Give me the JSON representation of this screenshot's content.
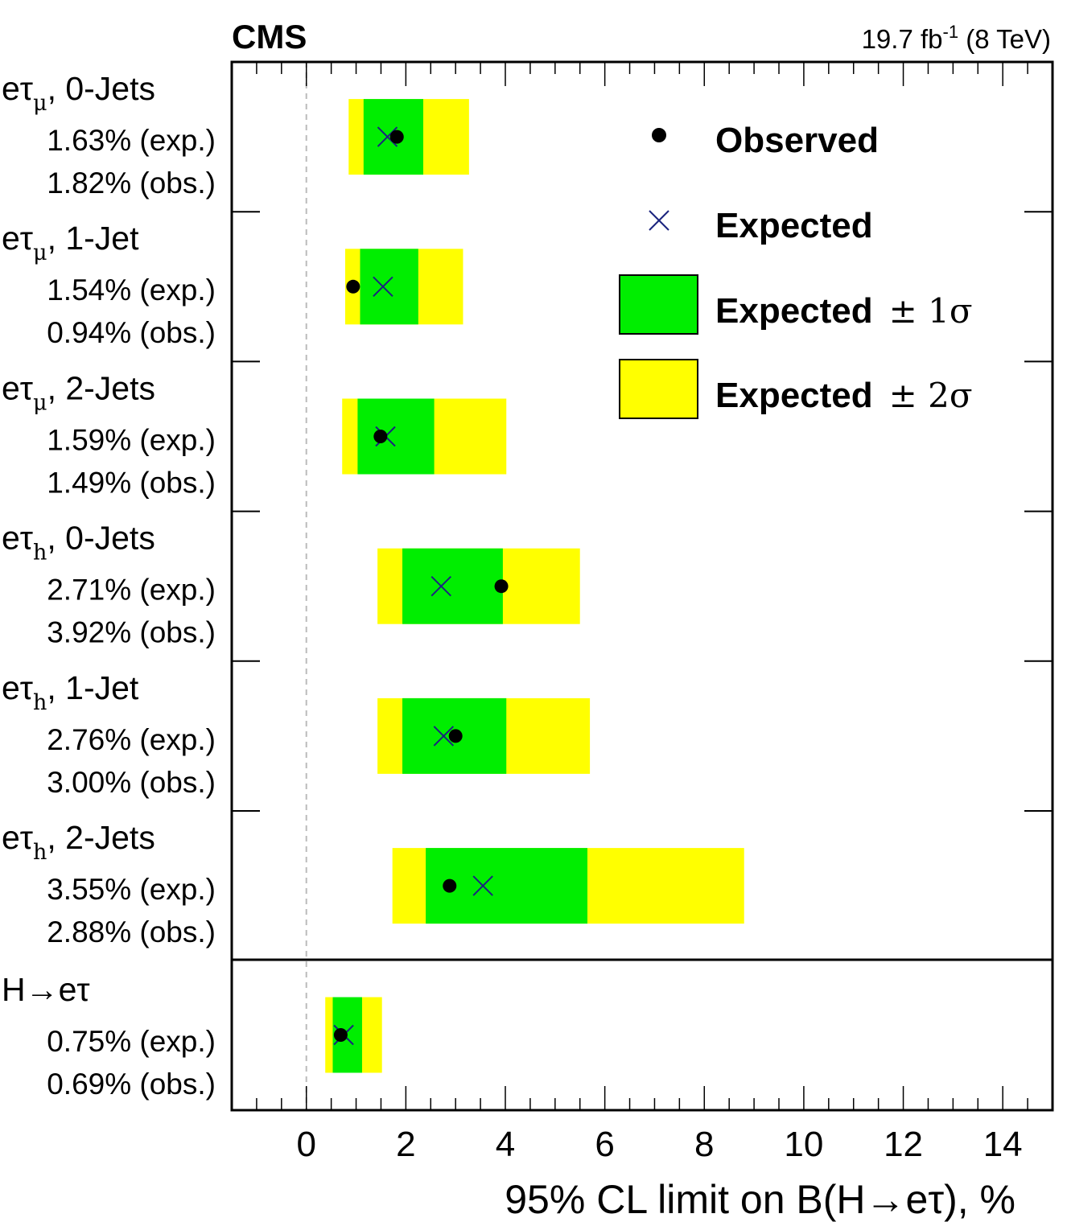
{
  "header": {
    "experiment": "CMS",
    "lumi_value": "19.7 fb",
    "lumi_exp": "-1",
    "energy": " (8 TeV)"
  },
  "chart_data": {
    "type": "limit",
    "xlabel": "95% CL limit on B(H→eτ), %",
    "xlim": [
      -1.5,
      15
    ],
    "xticks": [
      0,
      2,
      4,
      6,
      8,
      10,
      12,
      14
    ],
    "reference_line_x": 0,
    "colors": {
      "one_sigma": "#00ee00",
      "two_sigma": "#ffff00",
      "expected_marker": "#1a237e",
      "observed_marker": "#000000"
    },
    "categories": [
      {
        "pre": "eτ",
        "sub": "μ",
        "post": ", 0-Jets",
        "exp_label": "1.63% (exp.)",
        "obs_label": "1.82% (obs.)",
        "expected": 1.63,
        "observed": 1.82,
        "one_sigma": [
          1.15,
          2.35
        ],
        "two_sigma": [
          0.85,
          3.27
        ]
      },
      {
        "pre": "eτ",
        "sub": "μ",
        "post": ", 1-Jet",
        "exp_label": "1.54% (exp.)",
        "obs_label": "0.94% (obs.)",
        "expected": 1.54,
        "observed": 0.94,
        "one_sigma": [
          1.08,
          2.25
        ],
        "two_sigma": [
          0.78,
          3.15
        ]
      },
      {
        "pre": "eτ",
        "sub": "μ",
        "post": ", 2-Jets",
        "exp_label": "1.59% (exp.)",
        "obs_label": "1.49% (obs.)",
        "expected": 1.59,
        "observed": 1.49,
        "one_sigma": [
          1.03,
          2.57
        ],
        "two_sigma": [
          0.72,
          4.02
        ]
      },
      {
        "pre": "eτ",
        "sub": "h",
        "post": ", 0-Jets",
        "exp_label": "2.71% (exp.)",
        "obs_label": "3.92% (obs.)",
        "expected": 2.71,
        "observed": 3.92,
        "one_sigma": [
          1.93,
          3.95
        ],
        "two_sigma": [
          1.43,
          5.5
        ]
      },
      {
        "pre": "eτ",
        "sub": "h",
        "post": ", 1-Jet",
        "exp_label": "2.76% (exp.)",
        "obs_label": "3.00% (obs.)",
        "expected": 2.76,
        "observed": 3.0,
        "one_sigma": [
          1.93,
          4.02
        ],
        "two_sigma": [
          1.43,
          5.7
        ]
      },
      {
        "pre": "eτ",
        "sub": "h",
        "post": ", 2-Jets",
        "exp_label": "3.55% (exp.)",
        "obs_label": "2.88% (obs.)",
        "expected": 3.55,
        "observed": 2.88,
        "one_sigma": [
          2.4,
          5.65
        ],
        "two_sigma": [
          1.73,
          8.8
        ]
      },
      {
        "pre": "H→eτ",
        "sub": "",
        "post": "",
        "exp_label": "0.75% (exp.)",
        "obs_label": "0.69% (obs.)",
        "expected": 0.75,
        "observed": 0.69,
        "one_sigma": [
          0.53,
          1.12
        ],
        "two_sigma": [
          0.38,
          1.52
        ]
      }
    ],
    "legend": {
      "position": "top-right",
      "observed": "Observed",
      "expected": "Expected",
      "one_sigma_text": "Expected",
      "one_sigma_sym": "± 1σ",
      "two_sigma_text": "Expected",
      "two_sigma_sym": "± 2σ"
    }
  }
}
